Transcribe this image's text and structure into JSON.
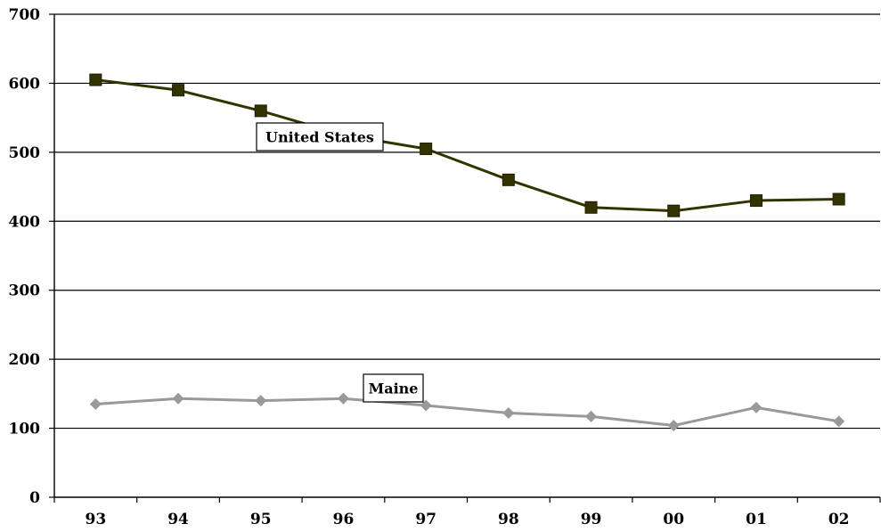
{
  "chart_data": {
    "type": "line",
    "categories": [
      "93",
      "94",
      "95",
      "96",
      "97",
      "98",
      "99",
      "00",
      "01",
      "02"
    ],
    "series": [
      {
        "name": "United States",
        "values": [
          605,
          590,
          560,
          525,
          505,
          460,
          420,
          415,
          430,
          432
        ],
        "color": "#333300",
        "marker": "square"
      },
      {
        "name": "Maine",
        "values": [
          135,
          143,
          140,
          143,
          133,
          122,
          117,
          104,
          130,
          110
        ],
        "color": "#999999",
        "marker": "diamond"
      }
    ],
    "ylim": [
      0,
      700
    ],
    "yticks": [
      0,
      100,
      200,
      300,
      400,
      500,
      600,
      700
    ],
    "grid": true,
    "legend": "inline labels"
  }
}
